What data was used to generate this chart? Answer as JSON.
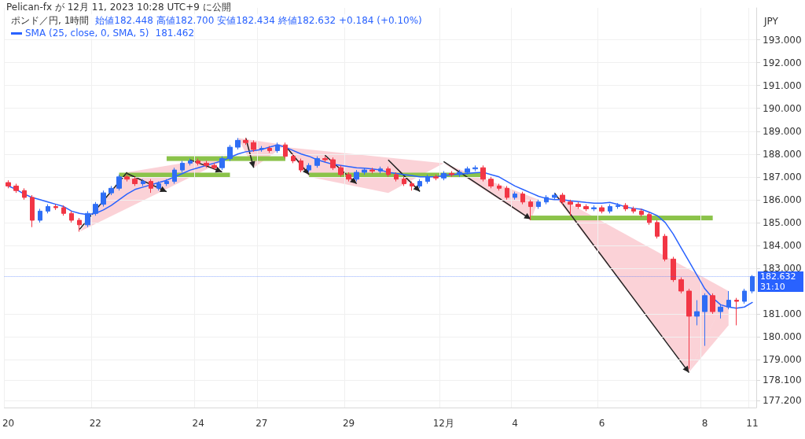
{
  "chart_data": {
    "type": "candlestick",
    "title": "ポンド／円, 1時間",
    "ylabel": "JPY",
    "annotations": [
      "Pelican-fx が 12月 11, 2023 10:28 UTC+9 に公開",
      "始値182.448 高値182.700 安値182.434 終値182.632 +0.184 (+0.10%)",
      "181.462",
      "31:10"
    ],
    "categories": [
      "20",
      null,
      null,
      null,
      null,
      null,
      null,
      null,
      null,
      null,
      null,
      "22",
      null,
      null,
      null,
      null,
      null,
      null,
      null,
      null,
      null,
      null,
      null,
      null,
      "24",
      null,
      null,
      null,
      null,
      null,
      null,
      null,
      "27",
      null,
      null,
      null,
      null,
      null,
      null,
      null,
      null,
      null,
      null,
      "29",
      null,
      null,
      null,
      null,
      null,
      null,
      null,
      null,
      null,
      null,
      null,
      "12月",
      null,
      null,
      null,
      null,
      null,
      null,
      null,
      null,
      "4",
      null,
      null,
      null,
      null,
      null,
      null,
      null,
      null,
      null,
      null,
      "6",
      null,
      null,
      null,
      null,
      null,
      null,
      null,
      null,
      null,
      null,
      null,
      null,
      "8",
      null,
      null,
      null,
      null,
      null,
      "11"
    ],
    "ohlc": [
      [
        186.75,
        186.85,
        186.5,
        186.6
      ],
      [
        186.6,
        186.7,
        186.3,
        186.4
      ],
      [
        186.4,
        186.5,
        186.0,
        186.1
      ],
      [
        186.1,
        186.2,
        184.8,
        185.1
      ],
      [
        185.1,
        185.6,
        185.0,
        185.5
      ],
      [
        185.5,
        185.8,
        185.4,
        185.7
      ],
      [
        185.7,
        185.8,
        185.55,
        185.65
      ],
      [
        185.65,
        185.75,
        185.3,
        185.4
      ],
      [
        185.4,
        185.5,
        185.0,
        185.1
      ],
      [
        185.1,
        185.2,
        184.6,
        184.9
      ],
      [
        184.9,
        185.5,
        184.8,
        185.4
      ],
      [
        185.4,
        185.9,
        185.3,
        185.8
      ],
      [
        185.8,
        186.4,
        185.7,
        186.3
      ],
      [
        186.3,
        186.6,
        186.2,
        186.5
      ],
      [
        186.5,
        187.1,
        186.4,
        187.0
      ],
      [
        187.0,
        187.1,
        186.8,
        186.9
      ],
      [
        186.9,
        187.0,
        186.6,
        186.7
      ],
      [
        186.7,
        186.9,
        186.6,
        186.8
      ],
      [
        186.8,
        186.9,
        186.3,
        186.5
      ],
      [
        186.5,
        186.8,
        186.4,
        186.7
      ],
      [
        186.7,
        186.9,
        186.6,
        186.8
      ],
      [
        186.8,
        187.4,
        186.7,
        187.3
      ],
      [
        187.3,
        187.7,
        187.2,
        187.6
      ],
      [
        187.6,
        187.8,
        187.5,
        187.7
      ],
      [
        187.7,
        187.8,
        187.5,
        187.6
      ],
      [
        187.6,
        187.7,
        187.4,
        187.5
      ],
      [
        187.5,
        187.6,
        187.3,
        187.4
      ],
      [
        187.4,
        187.9,
        187.3,
        187.8
      ],
      [
        187.8,
        188.4,
        187.7,
        188.3
      ],
      [
        188.3,
        188.7,
        188.2,
        188.6
      ],
      [
        188.6,
        188.7,
        188.4,
        188.5
      ],
      [
        188.5,
        188.6,
        188.1,
        188.2
      ],
      [
        188.2,
        188.35,
        188.1,
        188.25
      ],
      [
        188.25,
        188.35,
        188.05,
        188.15
      ],
      [
        188.15,
        188.5,
        188.05,
        188.4
      ],
      [
        188.4,
        188.5,
        187.8,
        187.9
      ],
      [
        187.9,
        188.0,
        187.6,
        187.7
      ],
      [
        187.7,
        187.8,
        187.2,
        187.3
      ],
      [
        187.3,
        187.6,
        187.2,
        187.5
      ],
      [
        187.5,
        187.9,
        187.4,
        187.8
      ],
      [
        187.8,
        187.9,
        187.65,
        187.75
      ],
      [
        187.75,
        187.85,
        187.3,
        187.4
      ],
      [
        187.4,
        187.5,
        187.0,
        187.1
      ],
      [
        187.1,
        187.2,
        186.8,
        186.9
      ],
      [
        186.9,
        187.3,
        186.8,
        187.2
      ],
      [
        187.2,
        187.4,
        187.1,
        187.3
      ],
      [
        187.3,
        187.4,
        187.15,
        187.25
      ],
      [
        187.25,
        187.45,
        187.15,
        187.35
      ],
      [
        187.35,
        187.45,
        187.0,
        187.1
      ],
      [
        187.1,
        187.2,
        186.8,
        186.9
      ],
      [
        186.9,
        187.0,
        186.6,
        186.7
      ],
      [
        186.7,
        186.8,
        186.4,
        186.6
      ],
      [
        186.6,
        186.9,
        186.5,
        186.8
      ],
      [
        186.8,
        187.1,
        186.7,
        187.0
      ],
      [
        187.0,
        187.1,
        186.85,
        186.95
      ],
      [
        186.95,
        187.25,
        186.85,
        187.15
      ],
      [
        187.15,
        187.25,
        187.0,
        187.1
      ],
      [
        187.1,
        187.3,
        187.0,
        187.2
      ],
      [
        187.2,
        187.45,
        187.1,
        187.35
      ],
      [
        187.35,
        187.5,
        187.25,
        187.4
      ],
      [
        187.4,
        187.5,
        186.8,
        186.9
      ],
      [
        186.9,
        187.0,
        186.5,
        186.6
      ],
      [
        186.6,
        186.7,
        186.4,
        186.5
      ],
      [
        186.5,
        186.6,
        186.0,
        186.1
      ],
      [
        186.1,
        186.35,
        186.0,
        186.25
      ],
      [
        186.25,
        186.35,
        185.8,
        185.9
      ],
      [
        185.9,
        186.0,
        185.1,
        185.7
      ],
      [
        185.7,
        186.0,
        185.6,
        185.9
      ],
      [
        185.9,
        186.2,
        185.8,
        186.1
      ],
      [
        186.1,
        186.3,
        186.0,
        186.2
      ],
      [
        186.2,
        186.3,
        185.8,
        185.9
      ],
      [
        185.9,
        186.0,
        185.3,
        185.8
      ],
      [
        185.8,
        185.9,
        185.6,
        185.7
      ],
      [
        185.7,
        185.8,
        185.5,
        185.6
      ],
      [
        185.6,
        185.75,
        185.5,
        185.65
      ],
      [
        185.65,
        185.75,
        185.4,
        185.5
      ],
      [
        185.5,
        185.8,
        185.4,
        185.7
      ],
      [
        185.7,
        185.85,
        185.6,
        185.75
      ],
      [
        185.75,
        185.85,
        185.5,
        185.6
      ],
      [
        185.6,
        185.7,
        185.4,
        185.5
      ],
      [
        185.5,
        185.6,
        185.25,
        185.35
      ],
      [
        185.35,
        185.45,
        184.9,
        185.0
      ],
      [
        185.0,
        185.1,
        184.3,
        184.4
      ],
      [
        184.4,
        184.5,
        183.3,
        183.4
      ],
      [
        183.4,
        183.5,
        182.4,
        182.5
      ],
      [
        182.5,
        182.6,
        181.9,
        182.0
      ],
      [
        182.0,
        182.1,
        178.6,
        180.9
      ],
      [
        180.9,
        181.6,
        180.5,
        181.1
      ],
      [
        181.1,
        181.9,
        179.6,
        181.8
      ],
      [
        181.8,
        181.9,
        181.0,
        181.1
      ],
      [
        181.1,
        181.4,
        180.8,
        181.3
      ],
      [
        181.3,
        182.0,
        181.2,
        181.6
      ],
      [
        181.6,
        181.7,
        180.5,
        181.55
      ],
      [
        181.55,
        182.1,
        181.45,
        182.0
      ],
      [
        182.0,
        182.7,
        181.9,
        182.632
      ]
    ],
    "series": [
      {
        "type": "line",
        "name": "SMA (25, close, 0, SMA, 5)",
        "color": "#2962ff",
        "values": [
          186.6,
          186.45,
          186.25,
          186.1,
          186.0,
          185.9,
          185.8,
          185.7,
          185.5,
          185.4,
          185.35,
          185.4,
          185.55,
          185.75,
          186.0,
          186.25,
          186.45,
          186.55,
          186.65,
          186.75,
          186.85,
          187.0,
          187.15,
          187.3,
          187.4,
          187.5,
          187.6,
          187.7,
          187.85,
          188.0,
          188.1,
          188.15,
          188.2,
          188.3,
          188.4,
          188.3,
          188.15,
          188.0,
          187.9,
          187.75,
          187.65,
          187.55,
          187.5,
          187.45,
          187.4,
          187.38,
          187.35,
          187.3,
          187.2,
          187.15,
          187.1,
          187.05,
          187.0,
          187.0,
          187.0,
          187.05,
          187.1,
          187.12,
          187.15,
          187.18,
          187.2,
          187.1,
          187.0,
          186.8,
          186.6,
          186.45,
          186.3,
          186.15,
          186.05,
          186.0,
          186.0,
          185.95,
          185.92,
          185.88,
          185.85,
          185.85,
          185.88,
          185.8,
          185.68,
          185.62,
          185.58,
          185.45,
          185.3,
          185.0,
          184.5,
          183.9,
          183.3,
          182.7,
          182.1,
          181.7,
          181.4,
          181.3,
          181.25,
          181.3,
          181.5
        ]
      }
    ],
    "ylim": [
      176.9,
      194.4
    ],
    "yticks": [
      {
        "value": 177.2,
        "label": "177.200"
      },
      {
        "value": 178.1,
        "label": "178.100"
      },
      {
        "value": 179,
        "label": "179.000"
      },
      {
        "value": 180,
        "label": "180.000"
      },
      {
        "value": 181,
        "label": "181.000"
      },
      {
        "value": 183,
        "label": "183.000"
      },
      {
        "value": 184,
        "label": "184.000"
      },
      {
        "value": 185,
        "label": "185.000"
      },
      {
        "value": 186,
        "label": "186.000"
      },
      {
        "value": 187,
        "label": "187.000"
      },
      {
        "value": 188,
        "label": "188.000"
      },
      {
        "value": 189,
        "label": "189.000"
      },
      {
        "value": 190,
        "label": "190.000"
      },
      {
        "value": 191,
        "label": "191.000"
      },
      {
        "value": 192,
        "label": "192.000"
      },
      {
        "value": 193,
        "label": "193.000"
      }
    ],
    "ref_lines": [
      {
        "axis": "y",
        "value": 182.632,
        "label": "182.632",
        "color": "#2962ff",
        "line_style": "dotted"
      }
    ],
    "grid": true
  }
}
